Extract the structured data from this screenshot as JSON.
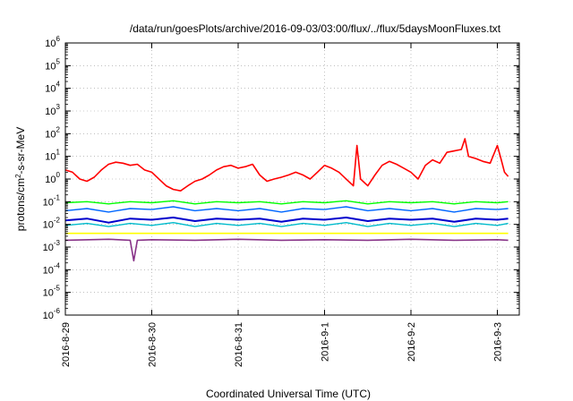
{
  "chart_data": {
    "type": "line",
    "title": "/data/run/goesPlots/archive/2016-09-03/03:00/flux/../flux/5daysMoonFluxes.txt",
    "xlabel": "Coordinated Universal Time (UTC)",
    "ylabel": {
      "prefix": "protons/cm",
      "sup": "2",
      "suffix": "-s-sr-MeV"
    },
    "y_scale": "log",
    "ylim": [
      1e-06,
      1000000.0
    ],
    "xlim": [
      "2016-08-29",
      "2016-09-03 03:00"
    ],
    "y_ticks": [
      {
        "value": 1e-06,
        "mant": "10",
        "exp": "-6"
      },
      {
        "value": 1e-05,
        "mant": "10",
        "exp": "-5"
      },
      {
        "value": 0.0001,
        "mant": "10",
        "exp": "-4"
      },
      {
        "value": 0.001,
        "mant": "10",
        "exp": "-3"
      },
      {
        "value": 0.01,
        "mant": "10",
        "exp": "-2"
      },
      {
        "value": 0.1,
        "mant": "10",
        "exp": "-1"
      },
      {
        "value": 1,
        "mant": "10",
        "exp": "0"
      },
      {
        "value": 10,
        "mant": "10",
        "exp": "1"
      },
      {
        "value": 100,
        "mant": "10",
        "exp": "2"
      },
      {
        "value": 1000,
        "mant": "10",
        "exp": "3"
      },
      {
        "value": 10000,
        "mant": "10",
        "exp": "4"
      },
      {
        "value": 100000,
        "mant": "10",
        "exp": "5"
      },
      {
        "value": 1000000,
        "mant": "10",
        "exp": "6"
      }
    ],
    "x_ticks": [
      {
        "date": "2016-08-29",
        "label": "2016-8-29"
      },
      {
        "date": "2016-08-30",
        "label": "2016-8-30"
      },
      {
        "date": "2016-08-31",
        "label": "2016-8-31"
      },
      {
        "date": "2016-09-01",
        "label": "2016-9-1"
      },
      {
        "date": "2016-09-02",
        "label": "2016-9-2"
      },
      {
        "date": "2016-09-03",
        "label": "2016-9-3"
      }
    ],
    "grid": true,
    "grid_style": "dotted",
    "legend": "none",
    "series": [
      {
        "color": "#ff0000",
        "width": 1.6,
        "x": [
          "2016-08-29 00:00",
          "2016-08-29 02:00",
          "2016-08-29 04:00",
          "2016-08-29 06:00",
          "2016-08-29 08:00",
          "2016-08-29 10:00",
          "2016-08-29 12:00",
          "2016-08-29 14:00",
          "2016-08-29 16:00",
          "2016-08-29 18:00",
          "2016-08-29 20:00",
          "2016-08-29 22:00",
          "2016-08-30 00:00",
          "2016-08-30 02:00",
          "2016-08-30 04:00",
          "2016-08-30 06:00",
          "2016-08-30 08:00",
          "2016-08-30 10:00",
          "2016-08-30 12:00",
          "2016-08-30 14:00",
          "2016-08-30 16:00",
          "2016-08-30 18:00",
          "2016-08-30 20:00",
          "2016-08-30 22:00",
          "2016-08-31 00:00",
          "2016-08-31 02:00",
          "2016-08-31 04:00",
          "2016-08-31 06:00",
          "2016-08-31 08:00",
          "2016-08-31 10:00",
          "2016-08-31 12:00",
          "2016-08-31 14:00",
          "2016-08-31 16:00",
          "2016-08-31 18:00",
          "2016-08-31 20:00",
          "2016-08-31 22:00",
          "2016-09-01 00:00",
          "2016-09-01 02:00",
          "2016-09-01 04:00",
          "2016-09-01 06:00",
          "2016-09-01 08:00",
          "2016-09-01 09:00",
          "2016-09-01 10:00",
          "2016-09-01 12:00",
          "2016-09-01 14:00",
          "2016-09-01 16:00",
          "2016-09-01 18:00",
          "2016-09-01 20:00",
          "2016-09-01 22:00",
          "2016-09-02 00:00",
          "2016-09-02 02:00",
          "2016-09-02 04:00",
          "2016-09-02 06:00",
          "2016-09-02 08:00",
          "2016-09-02 10:00",
          "2016-09-02 14:00",
          "2016-09-02 15:00",
          "2016-09-02 16:00",
          "2016-09-02 18:00",
          "2016-09-02 20:00",
          "2016-09-02 22:00",
          "2016-09-03 00:00",
          "2016-09-03 01:00",
          "2016-09-03 02:00",
          "2016-09-03 03:00"
        ],
        "values": [
          2.5,
          2.0,
          1.0,
          0.8,
          1.2,
          2.5,
          4.5,
          5.5,
          5.0,
          4.0,
          4.5,
          2.5,
          2.0,
          1.0,
          0.5,
          0.35,
          0.3,
          0.5,
          0.8,
          1.0,
          1.5,
          2.5,
          3.5,
          4.0,
          3.0,
          3.5,
          4.5,
          1.5,
          0.8,
          1.0,
          1.2,
          1.5,
          2.0,
          1.5,
          1.0,
          2.0,
          4.0,
          3.0,
          2.0,
          1.0,
          0.5,
          30,
          1.0,
          0.5,
          1.5,
          4.0,
          6.0,
          4.5,
          3.0,
          2.0,
          1.0,
          4.0,
          7.0,
          5.0,
          15,
          20,
          60,
          10,
          8,
          6,
          5,
          30,
          8,
          2,
          1.3
        ]
      },
      {
        "color": "#00ff00",
        "width": 1.4,
        "x": [
          "2016-08-29 00:00",
          "2016-08-29 06:00",
          "2016-08-29 12:00",
          "2016-08-29 18:00",
          "2016-08-30 00:00",
          "2016-08-30 06:00",
          "2016-08-30 12:00",
          "2016-08-30 18:00",
          "2016-08-31 00:00",
          "2016-08-31 06:00",
          "2016-08-31 12:00",
          "2016-08-31 18:00",
          "2016-09-01 00:00",
          "2016-09-01 06:00",
          "2016-09-01 12:00",
          "2016-09-01 18:00",
          "2016-09-02 00:00",
          "2016-09-02 06:00",
          "2016-09-02 12:00",
          "2016-09-02 18:00",
          "2016-09-03 00:00",
          "2016-09-03 03:00"
        ],
        "values": [
          0.09,
          0.1,
          0.08,
          0.1,
          0.09,
          0.11,
          0.08,
          0.1,
          0.09,
          0.1,
          0.08,
          0.1,
          0.09,
          0.11,
          0.08,
          0.1,
          0.09,
          0.1,
          0.08,
          0.1,
          0.09,
          0.1
        ]
      },
      {
        "color": "#0066ff",
        "width": 1.4,
        "x": [
          "2016-08-29 00:00",
          "2016-08-29 06:00",
          "2016-08-29 12:00",
          "2016-08-29 18:00",
          "2016-08-30 00:00",
          "2016-08-30 06:00",
          "2016-08-30 12:00",
          "2016-08-30 18:00",
          "2016-08-31 00:00",
          "2016-08-31 06:00",
          "2016-08-31 12:00",
          "2016-08-31 18:00",
          "2016-09-01 00:00",
          "2016-09-01 06:00",
          "2016-09-01 12:00",
          "2016-09-01 18:00",
          "2016-09-02 00:00",
          "2016-09-02 06:00",
          "2016-09-02 12:00",
          "2016-09-02 18:00",
          "2016-09-03 00:00",
          "2016-09-03 03:00"
        ],
        "values": [
          0.04,
          0.05,
          0.035,
          0.05,
          0.045,
          0.06,
          0.04,
          0.05,
          0.04,
          0.05,
          0.035,
          0.05,
          0.045,
          0.06,
          0.04,
          0.05,
          0.04,
          0.05,
          0.035,
          0.05,
          0.045,
          0.05
        ]
      },
      {
        "color": "#0000cc",
        "width": 2.0,
        "x": [
          "2016-08-29 00:00",
          "2016-08-29 06:00",
          "2016-08-29 12:00",
          "2016-08-29 18:00",
          "2016-08-30 00:00",
          "2016-08-30 06:00",
          "2016-08-30 12:00",
          "2016-08-30 18:00",
          "2016-08-31 00:00",
          "2016-08-31 06:00",
          "2016-08-31 12:00",
          "2016-08-31 18:00",
          "2016-09-01 00:00",
          "2016-09-01 06:00",
          "2016-09-01 12:00",
          "2016-09-01 18:00",
          "2016-09-02 00:00",
          "2016-09-02 06:00",
          "2016-09-02 12:00",
          "2016-09-02 18:00",
          "2016-09-03 00:00",
          "2016-09-03 03:00"
        ],
        "values": [
          0.015,
          0.018,
          0.012,
          0.018,
          0.016,
          0.02,
          0.014,
          0.018,
          0.016,
          0.018,
          0.013,
          0.018,
          0.016,
          0.02,
          0.014,
          0.018,
          0.016,
          0.018,
          0.013,
          0.018,
          0.016,
          0.018
        ]
      },
      {
        "color": "#00bbcc",
        "width": 1.4,
        "x": [
          "2016-08-29 00:00",
          "2016-08-29 06:00",
          "2016-08-29 12:00",
          "2016-08-29 18:00",
          "2016-08-30 00:00",
          "2016-08-30 06:00",
          "2016-08-30 12:00",
          "2016-08-30 18:00",
          "2016-08-31 00:00",
          "2016-08-31 06:00",
          "2016-08-31 12:00",
          "2016-08-31 18:00",
          "2016-09-01 00:00",
          "2016-09-01 06:00",
          "2016-09-01 12:00",
          "2016-09-01 18:00",
          "2016-09-02 00:00",
          "2016-09-02 06:00",
          "2016-09-02 12:00",
          "2016-09-02 18:00",
          "2016-09-03 00:00",
          "2016-09-03 03:00"
        ],
        "values": [
          0.009,
          0.011,
          0.008,
          0.011,
          0.009,
          0.012,
          0.008,
          0.011,
          0.009,
          0.011,
          0.008,
          0.011,
          0.009,
          0.012,
          0.008,
          0.011,
          0.009,
          0.011,
          0.008,
          0.011,
          0.009,
          0.011
        ]
      },
      {
        "color": "#ffff00",
        "width": 1.6,
        "x": [
          "2016-08-29 00:00",
          "2016-08-30 00:00",
          "2016-08-31 00:00",
          "2016-09-01 00:00",
          "2016-09-02 00:00",
          "2016-09-03 00:00",
          "2016-09-03 03:00"
        ],
        "values": [
          0.004,
          0.004,
          0.004,
          0.004,
          0.004,
          0.004,
          0.004
        ]
      },
      {
        "color": "#883388",
        "width": 1.6,
        "x": [
          "2016-08-29 00:00",
          "2016-08-29 12:00",
          "2016-08-29 18:00",
          "2016-08-29 19:00",
          "2016-08-29 20:00",
          "2016-08-30 00:00",
          "2016-08-30 12:00",
          "2016-08-31 00:00",
          "2016-08-31 12:00",
          "2016-09-01 00:00",
          "2016-09-01 12:00",
          "2016-09-02 00:00",
          "2016-09-02 12:00",
          "2016-09-03 00:00",
          "2016-09-03 03:00"
        ],
        "values": [
          0.002,
          0.0022,
          0.002,
          0.00025,
          0.002,
          0.0021,
          0.002,
          0.0022,
          0.002,
          0.0021,
          0.002,
          0.0022,
          0.002,
          0.0021,
          0.002
        ]
      }
    ]
  }
}
